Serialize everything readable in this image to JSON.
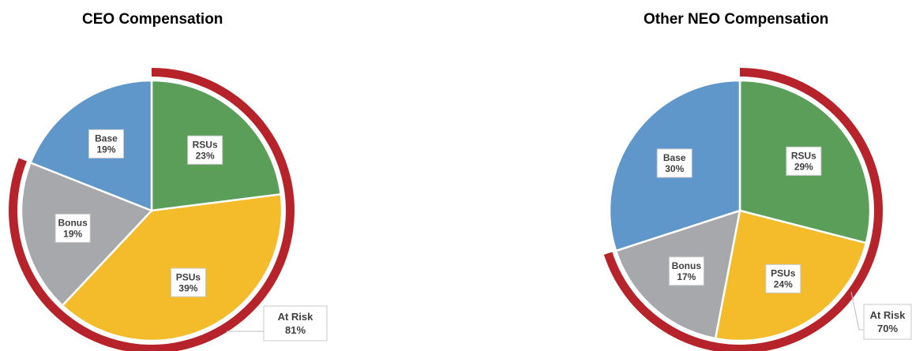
{
  "chart_data": [
    {
      "type": "pie",
      "title": "CEO Compensation",
      "slices": [
        {
          "label": "RSUs",
          "value": 23,
          "value_label": "23%",
          "color": "#5a9e5a",
          "at_risk": true
        },
        {
          "label": "PSUs",
          "value": 39,
          "value_label": "39%",
          "color": "#f4bb2b",
          "at_risk": true
        },
        {
          "label": "Bonus",
          "value": 19,
          "value_label": "19%",
          "color": "#a7a8ab",
          "at_risk": true
        },
        {
          "label": "Base",
          "value": 19,
          "value_label": "19%",
          "color": "#5f97cb",
          "at_risk": false
        }
      ],
      "at_risk": {
        "label": "At Risk",
        "value": 81,
        "value_label": "81%",
        "color": "#b7232a"
      }
    },
    {
      "type": "pie",
      "title": "Other NEO Compensation",
      "slices": [
        {
          "label": "RSUs",
          "value": 29,
          "value_label": "29%",
          "color": "#5a9e5a",
          "at_risk": true
        },
        {
          "label": "PSUs",
          "value": 24,
          "value_label": "24%",
          "color": "#f4bb2b",
          "at_risk": true
        },
        {
          "label": "Bonus",
          "value": 17,
          "value_label": "17%",
          "color": "#a7a8ab",
          "at_risk": true
        },
        {
          "label": "Base",
          "value": 30,
          "value_label": "30%",
          "color": "#5f97cb",
          "at_risk": false
        }
      ],
      "at_risk": {
        "label": "At Risk",
        "value": 70,
        "value_label": "70%",
        "color": "#b7232a"
      }
    }
  ]
}
